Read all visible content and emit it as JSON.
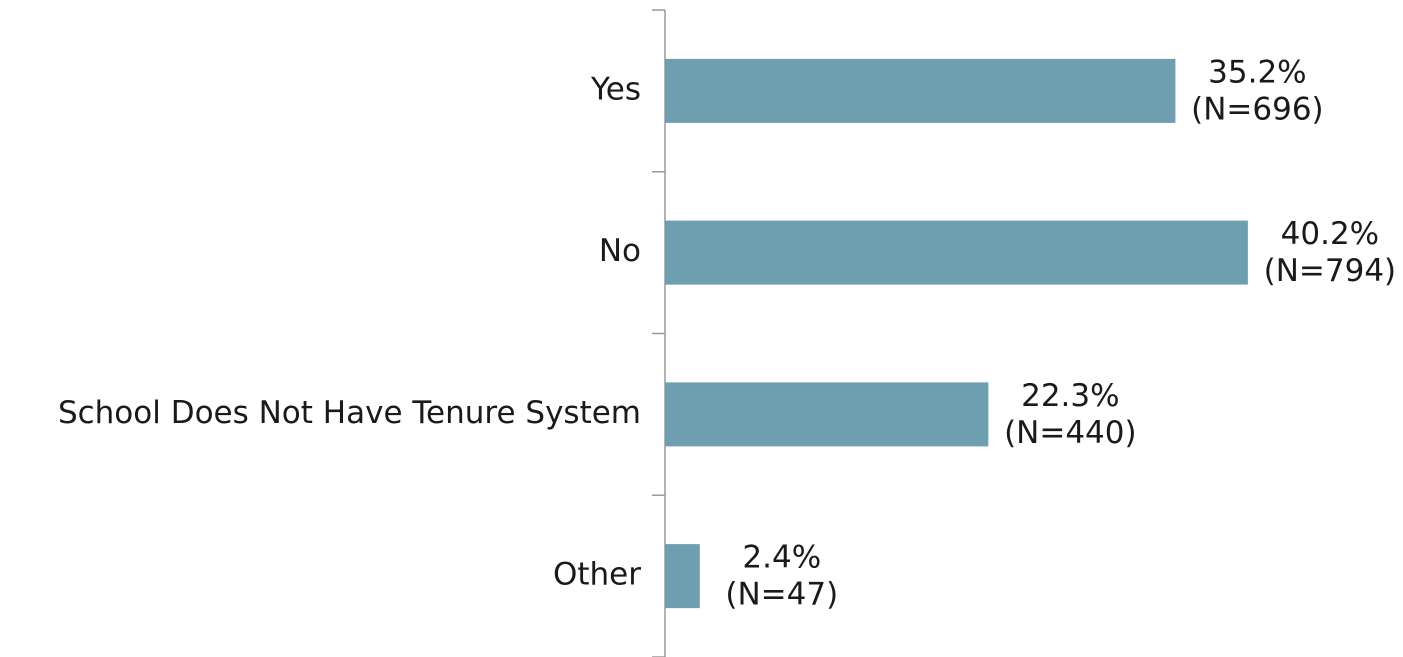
{
  "chart_data": {
    "type": "hbar",
    "categories": [
      "Yes",
      "No",
      "School Does Not Have Tenure System",
      "Other"
    ],
    "values": [
      35.2,
      40.2,
      22.3,
      2.4
    ],
    "value_labels": [
      "35.2%",
      "40.2%",
      "22.3%",
      "2.4%"
    ],
    "n_labels": [
      "(N=696)",
      "(N=794)",
      "(N=440)",
      "(N=47)"
    ],
    "color": "#6e9fb0",
    "xlim": [
      0,
      50
    ]
  }
}
